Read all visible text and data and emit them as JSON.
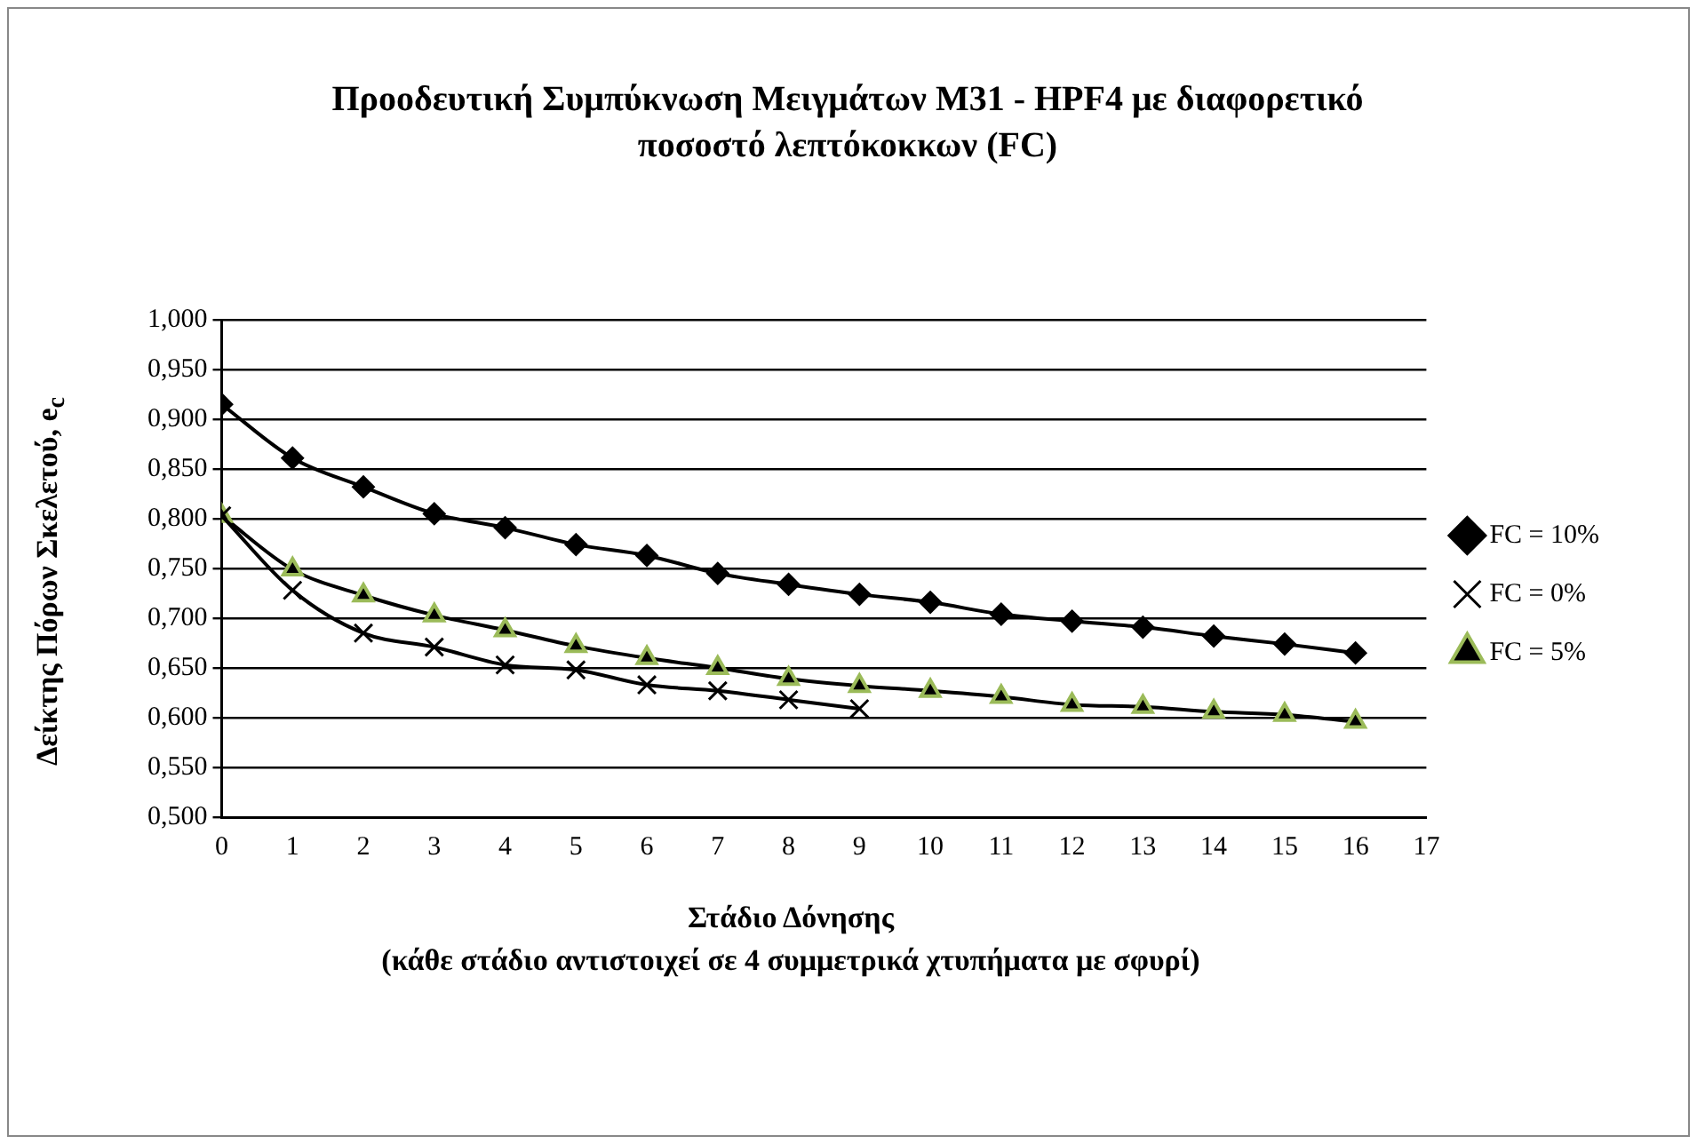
{
  "chart_data": {
    "type": "line",
    "title": "Προοδευτική Συμπύκνωση Μειγμάτων Μ31 - HPF4 με διαφορετικό ποσοστό λεπτόκοκκων (FC)",
    "xlabel": "Στάδιο Δόνησης\n(κάθε στάδιο αντιστοιχεί σε  4 συμμετρικά χτυπήματα με σφυρί)",
    "ylabel": "Δείκτης Πόρων Σκελετού, e$_{c}$",
    "x": [
      0,
      1,
      2,
      3,
      4,
      5,
      6,
      7,
      8,
      9,
      10,
      11,
      12,
      13,
      14,
      15,
      16
    ],
    "series": [
      {
        "name": "FC = 10%",
        "color": "#000000",
        "marker": "diamond",
        "values": [
          0.915,
          0.861,
          0.832,
          0.805,
          0.791,
          0.774,
          0.763,
          0.745,
          0.734,
          0.724,
          0.716,
          0.704,
          0.697,
          0.691,
          0.682,
          0.674,
          0.665
        ]
      },
      {
        "name": "FC = 0%",
        "color": "#000000",
        "marker": "cross",
        "values": [
          0.803,
          0.728,
          0.685,
          0.671,
          0.653,
          0.648,
          0.633,
          0.627,
          0.618,
          0.609,
          null,
          null,
          null,
          null,
          null,
          null,
          null
        ]
      },
      {
        "name": "FC = 5%",
        "color": "#000000",
        "marker": "triangle",
        "values": [
          0.803,
          0.749,
          0.723,
          0.703,
          0.688,
          0.672,
          0.66,
          0.65,
          0.639,
          0.632,
          0.627,
          0.621,
          0.613,
          0.611,
          0.606,
          0.603,
          0.596
        ]
      }
    ],
    "xlim": [
      0,
      17
    ],
    "xticks": [
      0,
      1,
      2,
      3,
      4,
      5,
      6,
      7,
      8,
      9,
      10,
      11,
      12,
      13,
      14,
      15,
      16,
      17
    ],
    "ylim": [
      0.5,
      1.0
    ],
    "yticks": [
      {
        "value": 0.5,
        "label": "0,500"
      },
      {
        "value": 0.55,
        "label": "0,550"
      },
      {
        "value": 0.6,
        "label": "0,600"
      },
      {
        "value": 0.65,
        "label": "0,650"
      },
      {
        "value": 0.7,
        "label": "0,700"
      },
      {
        "value": 0.75,
        "label": "0,750"
      },
      {
        "value": 0.8,
        "label": "0,800"
      },
      {
        "value": 0.85,
        "label": "0,850"
      },
      {
        "value": 0.9,
        "label": "0,900"
      },
      {
        "value": 0.95,
        "label": "0,950"
      },
      {
        "value": 1.0,
        "label": "1,000"
      }
    ],
    "grid": "y",
    "legend": "right",
    "line_style": "solid"
  }
}
